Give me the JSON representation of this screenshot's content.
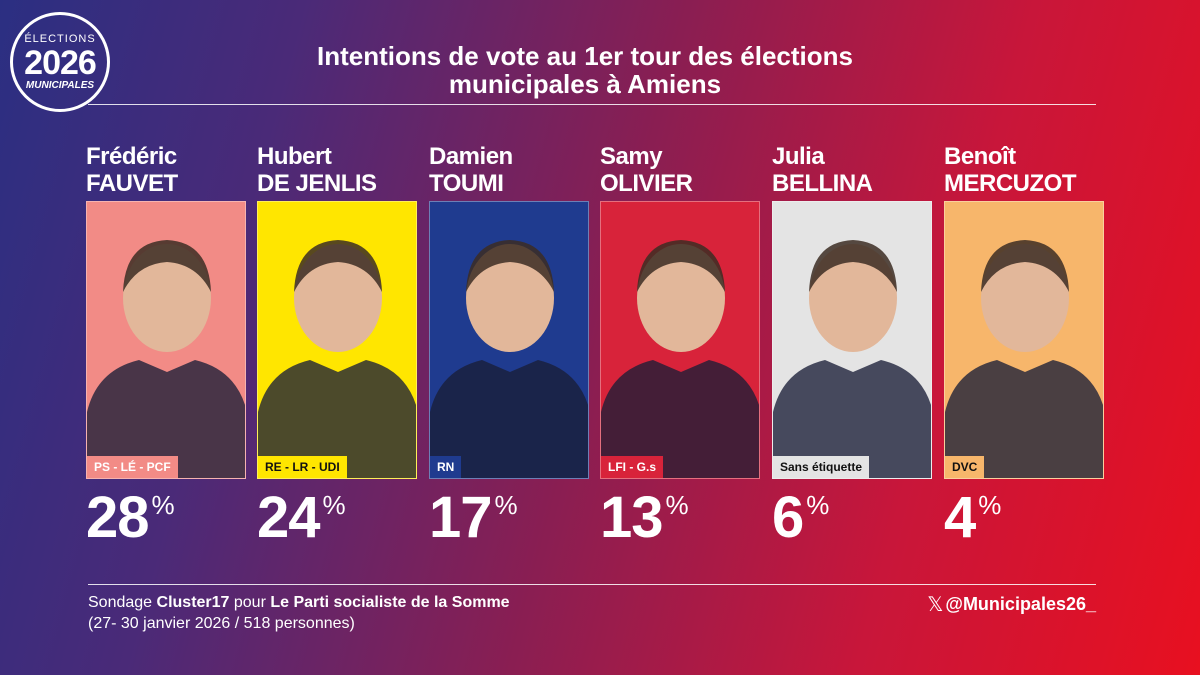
{
  "logo": {
    "line1": "ÉLECTIONS",
    "line2": "2026",
    "line3": "MUNICIPALES"
  },
  "title_line1": "Intentions de vote au 1er tour des élections",
  "title_line2": "municipales à Amiens",
  "chart_data": {
    "type": "table",
    "title": "Intentions de vote au 1er tour des élections municipales à Amiens",
    "unit": "%",
    "candidates": [
      {
        "first": "Frédéric",
        "last": "FAUVET",
        "party": "PS - LÉ - PCF",
        "value": 28,
        "photo_bg": "#f28b86",
        "badge_bg": "#f28b86",
        "badge_fg": "#ffffff"
      },
      {
        "first": "Hubert",
        "last": "DE JENLIS",
        "party": "RE - LR - UDI",
        "value": 24,
        "photo_bg": "#ffe600",
        "badge_bg": "#ffe600",
        "badge_fg": "#111111"
      },
      {
        "first": "Damien",
        "last": "TOUMI",
        "party": "RN",
        "value": 17,
        "photo_bg": "#1f3b8f",
        "badge_bg": "#1f3b8f",
        "badge_fg": "#ffffff"
      },
      {
        "first": "Samy",
        "last": "OLIVIER",
        "party": "LFI - G.s",
        "value": 13,
        "photo_bg": "#d8233a",
        "badge_bg": "#d8233a",
        "badge_fg": "#ffffff"
      },
      {
        "first": "Julia",
        "last": "BELLINA",
        "party": "Sans étiquette",
        "value": 6,
        "photo_bg": "#e4e4e4",
        "badge_bg": "#e4e4e4",
        "badge_fg": "#111111"
      },
      {
        "first": "Benoît",
        "last": "MERCUZOT",
        "party": "DVC",
        "value": 4,
        "photo_bg": "#f7b66b",
        "badge_bg": "#f7b66b",
        "badge_fg": "#111111"
      }
    ]
  },
  "source": {
    "prefix": "Sondage ",
    "pollster": "Cluster17",
    "middle": " pour ",
    "client": "Le Parti socialiste de la Somme",
    "details": "(27- 30 janvier 2026 / 518 personnes)"
  },
  "handle": {
    "icon": "x-logo-icon",
    "symbol": "𝕏",
    "text": "@Municipales26_"
  }
}
